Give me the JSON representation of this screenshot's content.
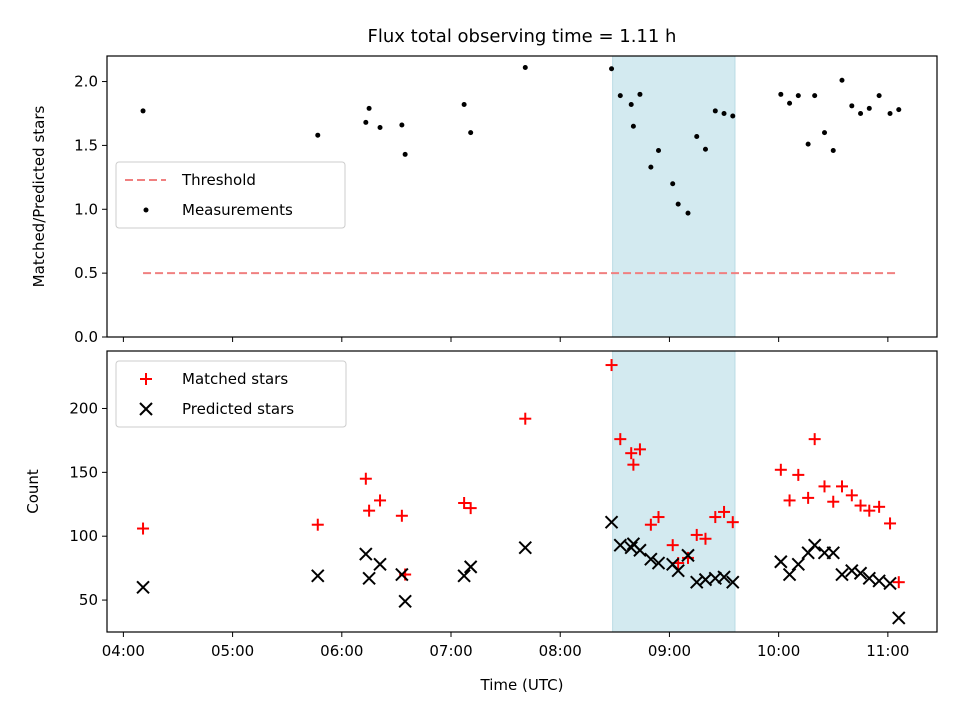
{
  "chart_data": {
    "title": "Flux total observing time = 1.11 h",
    "xlabel": "Time (UTC)",
    "x_ticks": [
      "04:00",
      "05:00",
      "06:00",
      "07:00",
      "08:00",
      "09:00",
      "10:00",
      "11:00"
    ],
    "x_tick_hours": [
      4,
      5,
      6,
      7,
      8,
      9,
      10,
      11
    ],
    "xlim_hours": [
      3.85,
      11.45
    ],
    "shaded_region_hours": [
      8.48,
      9.6
    ],
    "shade_color": "#d3eaf0",
    "panels": [
      {
        "type": "scatter",
        "ylabel": "Matched/Predicted stars",
        "ylim": [
          0.0,
          2.2
        ],
        "y_ticks": [
          "0.0",
          "0.5",
          "1.0",
          "1.5",
          "2.0"
        ],
        "y_tick_values": [
          0.0,
          0.5,
          1.0,
          1.5,
          2.0
        ],
        "legend_position": "center-left",
        "legend": [
          {
            "label": "Threshold",
            "style": "dashed-line",
            "color": "#f08080"
          },
          {
            "label": "Measurements",
            "style": "dot",
            "color": "#000000"
          }
        ],
        "threshold": {
          "value": 0.5,
          "x_range_hours": [
            4.18,
            11.1
          ]
        },
        "series": [
          {
            "name": "Measurements",
            "color": "#000000",
            "x_hours": [
              4.18,
              5.78,
              6.22,
              6.25,
              6.35,
              6.55,
              6.58,
              7.12,
              7.18,
              7.68,
              8.47,
              8.55,
              8.65,
              8.67,
              8.73,
              8.83,
              8.9,
              9.03,
              9.08,
              9.17,
              9.25,
              9.33,
              9.42,
              9.5,
              9.58,
              10.02,
              10.1,
              10.18,
              10.27,
              10.33,
              10.42,
              10.5,
              10.58,
              10.67,
              10.75,
              10.83,
              10.92,
              11.02,
              11.1
            ],
            "y": [
              1.77,
              1.58,
              1.68,
              1.79,
              1.64,
              1.66,
              1.43,
              1.82,
              1.6,
              2.11,
              2.1,
              1.89,
              1.82,
              1.65,
              1.9,
              1.33,
              1.46,
              1.2,
              1.04,
              0.97,
              1.57,
              1.47,
              1.77,
              1.75,
              1.73,
              1.9,
              1.83,
              1.89,
              1.51,
              1.89,
              1.6,
              1.46,
              2.01,
              1.81,
              1.75,
              1.79,
              1.89,
              1.75,
              1.78
            ]
          }
        ]
      },
      {
        "type": "scatter",
        "ylabel": "Count",
        "ylim": [
          25,
          245
        ],
        "y_ticks": [
          "50",
          "100",
          "150",
          "200"
        ],
        "y_tick_values": [
          50,
          100,
          150,
          200
        ],
        "legend_position": "top-left",
        "legend": [
          {
            "label": "Matched stars",
            "style": "plus",
            "color": "#ff0000"
          },
          {
            "label": "Predicted stars",
            "style": "cross",
            "color": "#000000"
          }
        ],
        "series": [
          {
            "name": "Matched stars",
            "color": "#ff0000",
            "marker": "plus",
            "x_hours": [
              4.18,
              5.78,
              6.22,
              6.25,
              6.35,
              6.55,
              6.58,
              7.12,
              7.18,
              7.68,
              8.47,
              8.55,
              8.65,
              8.67,
              8.73,
              8.83,
              8.9,
              9.03,
              9.08,
              9.17,
              9.25,
              9.33,
              9.42,
              9.5,
              9.58,
              10.02,
              10.1,
              10.18,
              10.27,
              10.33,
              10.42,
              10.5,
              10.58,
              10.67,
              10.75,
              10.83,
              10.92,
              11.02,
              11.1
            ],
            "y": [
              106,
              109,
              145,
              120,
              128,
              116,
              70,
              126,
              122,
              192,
              234,
              176,
              165,
              156,
              168,
              109,
              115,
              93,
              79,
              83,
              101,
              98,
              115,
              119,
              111,
              152,
              128,
              148,
              130,
              176,
              139,
              127,
              139,
              132,
              124,
              120,
              123,
              110,
              64
            ]
          },
          {
            "name": "Predicted stars",
            "color": "#000000",
            "marker": "cross",
            "x_hours": [
              4.18,
              5.78,
              6.22,
              6.25,
              6.35,
              6.55,
              6.58,
              7.12,
              7.18,
              7.68,
              8.47,
              8.55,
              8.65,
              8.67,
              8.73,
              8.83,
              8.9,
              9.03,
              9.08,
              9.17,
              9.25,
              9.33,
              9.42,
              9.5,
              9.58,
              10.02,
              10.1,
              10.18,
              10.27,
              10.33,
              10.42,
              10.5,
              10.58,
              10.67,
              10.75,
              10.83,
              10.92,
              11.02,
              11.1
            ],
            "y": [
              60,
              69,
              86,
              67,
              78,
              70,
              49,
              69,
              76,
              91,
              111,
              93,
              91,
              94,
              89,
              82,
              79,
              78,
              73,
              85,
              64,
              66,
              67,
              68,
              64,
              80,
              70,
              78,
              87,
              93,
              87,
              87,
              70,
              73,
              71,
              67,
              65,
              63,
              36
            ]
          }
        ]
      }
    ]
  }
}
